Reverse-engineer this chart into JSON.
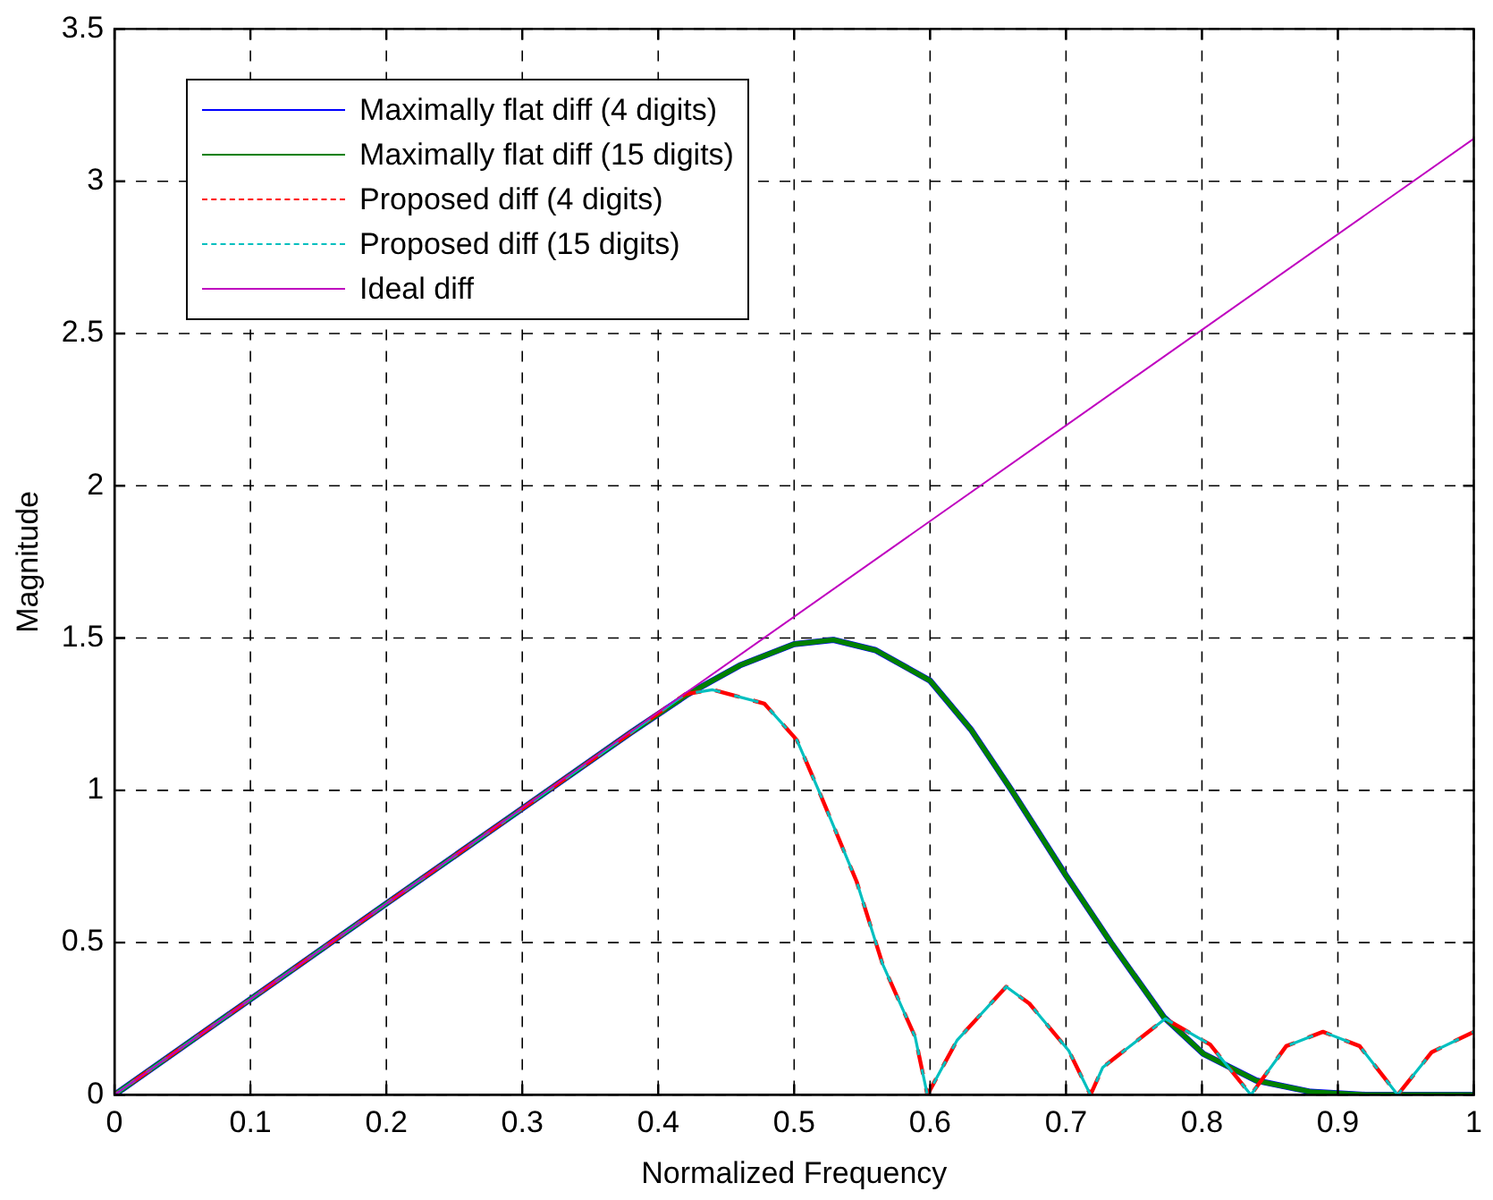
{
  "chart_data": {
    "type": "line",
    "xlabel": "Normalized Frequency",
    "ylabel": "Magnitude",
    "xlim": [
      0,
      1
    ],
    "ylim": [
      0,
      3.5
    ],
    "xticks": [
      0,
      0.1,
      0.2,
      0.3,
      0.4,
      0.5,
      0.6,
      0.7,
      0.8,
      0.9,
      1
    ],
    "yticks": [
      0,
      0.5,
      1,
      1.5,
      2,
      2.5,
      3,
      3.5
    ],
    "grid": true,
    "legend": "top left",
    "marker": "none",
    "series": [
      {
        "name": "Maximally flat diff (4 digits)",
        "color": "#0000ff",
        "line_style": "solid",
        "x": [
          0,
          0.1,
          0.2,
          0.3,
          0.38,
          0.422,
          0.46,
          0.5,
          0.529,
          0.56,
          0.6,
          0.63,
          0.66,
          0.7,
          0.733,
          0.772,
          0.801,
          0.84,
          0.88,
          0.92,
          1
        ],
        "values": [
          0,
          0.314,
          0.628,
          0.94,
          1.19,
          1.316,
          1.41,
          1.48,
          1.494,
          1.46,
          1.36,
          1.2,
          1.0,
          0.72,
          0.5,
          0.255,
          0.135,
          0.047,
          0.01,
          0,
          0
        ]
      },
      {
        "name": "Maximally flat diff (15 digits)",
        "color": "#008000",
        "line_style": "solid",
        "x": [
          0,
          0.1,
          0.2,
          0.3,
          0.38,
          0.422,
          0.46,
          0.5,
          0.529,
          0.56,
          0.6,
          0.63,
          0.66,
          0.7,
          0.733,
          0.772,
          0.801,
          0.84,
          0.88,
          0.92,
          1
        ],
        "values": [
          0,
          0.314,
          0.628,
          0.94,
          1.19,
          1.316,
          1.41,
          1.48,
          1.494,
          1.46,
          1.36,
          1.2,
          1.0,
          0.72,
          0.5,
          0.255,
          0.135,
          0.047,
          0.01,
          0,
          0
        ]
      },
      {
        "name": "Proposed diff (4 digits)",
        "color": "#ff0000",
        "line_style": "dashed",
        "x": [
          0,
          0.1,
          0.2,
          0.3,
          0.38,
          0.42,
          0.44,
          0.478,
          0.502,
          0.518,
          0.546,
          0.565,
          0.589,
          0.598,
          0.62,
          0.656,
          0.673,
          0.702,
          0.718,
          0.727,
          0.773,
          0.806,
          0.836,
          0.862,
          0.889,
          0.916,
          0.944,
          0.969,
          1
        ],
        "values": [
          0,
          0.314,
          0.628,
          0.94,
          1.19,
          1.316,
          1.33,
          1.285,
          1.165,
          1.0,
          0.7,
          0.43,
          0.19,
          0,
          0.18,
          0.355,
          0.3,
          0.145,
          0,
          0.09,
          0.25,
          0.165,
          0,
          0.16,
          0.207,
          0.16,
          0,
          0.14,
          0.207
        ]
      },
      {
        "name": "Proposed diff (15 digits)",
        "color": "#00bfbf",
        "line_style": "dashed",
        "x": [
          0,
          0.1,
          0.2,
          0.3,
          0.38,
          0.42,
          0.44,
          0.478,
          0.502,
          0.518,
          0.546,
          0.565,
          0.589,
          0.598,
          0.62,
          0.656,
          0.673,
          0.702,
          0.718,
          0.727,
          0.773,
          0.806,
          0.836,
          0.862,
          0.889,
          0.916,
          0.944,
          0.969,
          1
        ],
        "values": [
          0,
          0.314,
          0.628,
          0.94,
          1.19,
          1.316,
          1.33,
          1.285,
          1.165,
          1.0,
          0.7,
          0.43,
          0.19,
          0,
          0.18,
          0.355,
          0.3,
          0.145,
          0,
          0.09,
          0.25,
          0.165,
          0,
          0.16,
          0.207,
          0.16,
          0,
          0.14,
          0.207
        ]
      },
      {
        "name": "Ideal diff",
        "color": "#bf00bf",
        "line_style": "solid",
        "x": [
          0,
          1
        ],
        "values": [
          0,
          3.14
        ]
      }
    ]
  }
}
